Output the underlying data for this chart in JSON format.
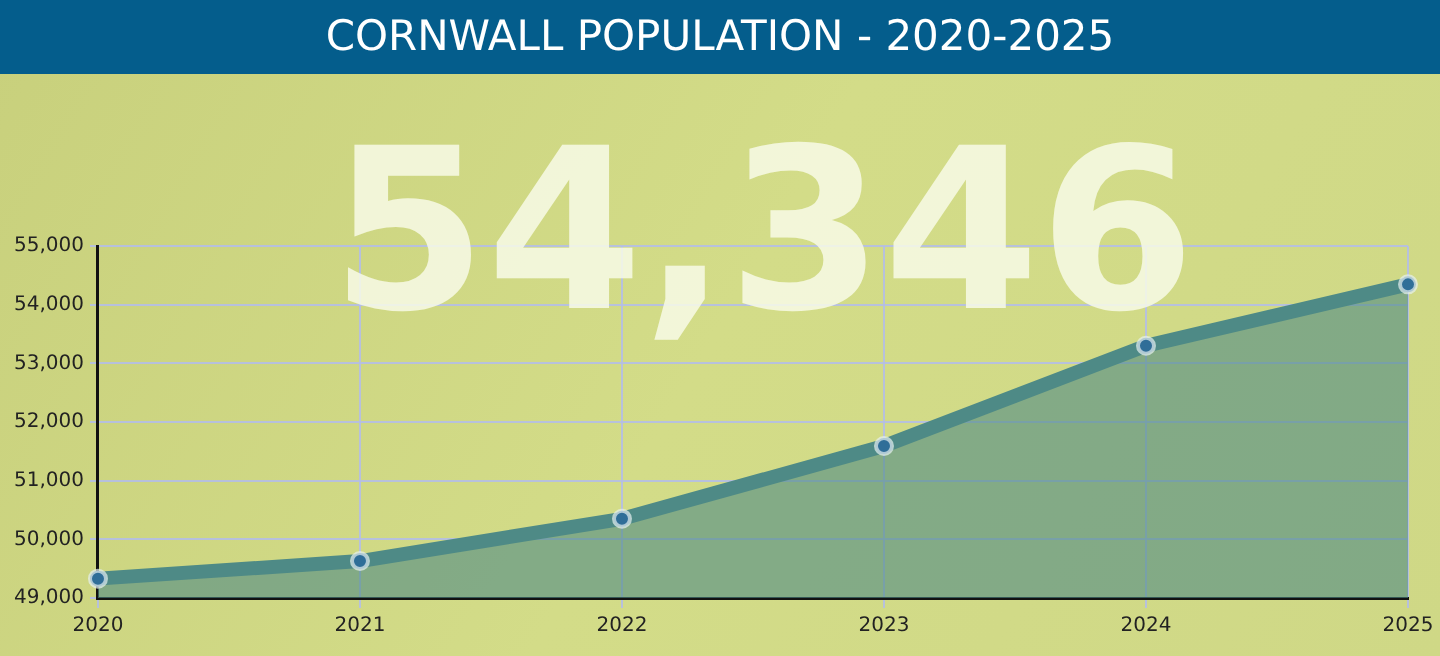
{
  "chart_data": {
    "type": "area",
    "title": "CORNWALL POPULATION - 2020-2025",
    "annotations": [
      "54,346"
    ],
    "categories": [
      "2020",
      "2021",
      "2022",
      "2023",
      "2024",
      "2025"
    ],
    "series": [
      {
        "color": "#4e8a86",
        "values": [
          49330,
          49630,
          50350,
          51590,
          53300,
          54346
        ]
      }
    ],
    "ylim": [
      49000,
      55000
    ],
    "yticks": [
      {
        "value": 49000,
        "label": "49,000"
      },
      {
        "value": 50000,
        "label": "50,000"
      },
      {
        "value": 51000,
        "label": "51,000"
      },
      {
        "value": 52000,
        "label": "52,000"
      },
      {
        "value": 53000,
        "label": "53,000"
      },
      {
        "value": 54000,
        "label": "54,000"
      },
      {
        "value": 55000,
        "label": "55,000"
      }
    ],
    "grid": true,
    "marker": "circle",
    "legend": false
  }
}
